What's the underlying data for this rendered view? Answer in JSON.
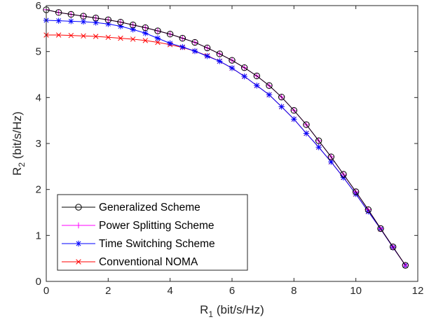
{
  "chart_data": {
    "type": "line",
    "xlabel": "R",
    "xlabel_sub": "1",
    "xlabel_unit": " (bit/s/Hz)",
    "ylabel": "R",
    "ylabel_sub": "2",
    "ylabel_unit": " (bit/s/Hz)",
    "xlim": [
      0,
      12
    ],
    "ylim": [
      0,
      6
    ],
    "xticks": [
      0,
      2,
      4,
      6,
      8,
      10,
      12
    ],
    "yticks": [
      0,
      1,
      2,
      3,
      4,
      5,
      6
    ],
    "grid": false,
    "legend_position": "bottom-left",
    "series": [
      {
        "name": "Generalized Scheme",
        "color": "#000000",
        "marker": "circle",
        "points": [
          [
            0.0,
            5.91
          ],
          [
            0.4,
            5.85
          ],
          [
            0.8,
            5.81
          ],
          [
            1.2,
            5.77
          ],
          [
            1.6,
            5.73
          ],
          [
            2.0,
            5.69
          ],
          [
            2.4,
            5.64
          ],
          [
            2.8,
            5.58
          ],
          [
            3.2,
            5.52
          ],
          [
            3.6,
            5.45
          ],
          [
            4.0,
            5.38
          ],
          [
            4.4,
            5.29
          ],
          [
            4.8,
            5.2
          ],
          [
            5.2,
            5.08
          ],
          [
            5.6,
            4.95
          ],
          [
            6.0,
            4.81
          ],
          [
            6.4,
            4.65
          ],
          [
            6.8,
            4.47
          ],
          [
            7.2,
            4.26
          ],
          [
            7.6,
            4.01
          ],
          [
            8.0,
            3.72
          ],
          [
            8.4,
            3.41
          ],
          [
            8.8,
            3.06
          ],
          [
            9.2,
            2.71
          ],
          [
            9.6,
            2.33
          ],
          [
            10.0,
            1.95
          ],
          [
            10.4,
            1.56
          ],
          [
            10.8,
            1.15
          ],
          [
            11.2,
            0.75
          ],
          [
            11.6,
            0.35
          ]
        ]
      },
      {
        "name": "Power Splitting Scheme",
        "color": "#ff00ff",
        "marker": "plus",
        "points": [
          [
            0.0,
            5.91
          ],
          [
            0.4,
            5.85
          ],
          [
            0.8,
            5.81
          ],
          [
            1.2,
            5.77
          ],
          [
            1.6,
            5.73
          ],
          [
            2.0,
            5.69
          ],
          [
            2.4,
            5.64
          ],
          [
            2.8,
            5.58
          ],
          [
            3.2,
            5.52
          ],
          [
            3.6,
            5.45
          ],
          [
            4.0,
            5.38
          ],
          [
            4.4,
            5.29
          ],
          [
            4.8,
            5.2
          ],
          [
            5.2,
            5.08
          ],
          [
            5.6,
            4.95
          ],
          [
            6.0,
            4.81
          ],
          [
            6.4,
            4.65
          ],
          [
            6.8,
            4.47
          ],
          [
            7.2,
            4.26
          ],
          [
            7.6,
            4.01
          ],
          [
            8.0,
            3.72
          ],
          [
            8.4,
            3.41
          ],
          [
            8.8,
            3.06
          ],
          [
            9.2,
            2.71
          ],
          [
            9.6,
            2.33
          ],
          [
            10.0,
            1.95
          ],
          [
            10.4,
            1.56
          ],
          [
            10.8,
            1.15
          ],
          [
            11.2,
            0.75
          ],
          [
            11.6,
            0.35
          ]
        ]
      },
      {
        "name": "Time Switching Scheme",
        "color": "#0000ff",
        "marker": "asterisk",
        "points": [
          [
            0.0,
            5.68
          ],
          [
            0.4,
            5.67
          ],
          [
            0.8,
            5.66
          ],
          [
            1.2,
            5.65
          ],
          [
            1.6,
            5.63
          ],
          [
            2.0,
            5.6
          ],
          [
            2.4,
            5.55
          ],
          [
            2.8,
            5.48
          ],
          [
            3.2,
            5.4
          ],
          [
            3.6,
            5.29
          ],
          [
            4.0,
            5.18
          ],
          [
            4.4,
            5.1
          ],
          [
            4.8,
            5.01
          ],
          [
            5.2,
            4.9
          ],
          [
            5.6,
            4.79
          ],
          [
            6.0,
            4.64
          ],
          [
            6.4,
            4.46
          ],
          [
            6.8,
            4.26
          ],
          [
            7.2,
            4.06
          ],
          [
            7.6,
            3.8
          ],
          [
            8.0,
            3.53
          ],
          [
            8.4,
            3.22
          ],
          [
            8.8,
            2.92
          ],
          [
            9.2,
            2.6
          ],
          [
            9.6,
            2.26
          ],
          [
            10.0,
            1.9
          ],
          [
            10.4,
            1.52
          ],
          [
            10.8,
            1.14
          ],
          [
            11.2,
            0.74
          ],
          [
            11.6,
            0.35
          ]
        ]
      },
      {
        "name": "Conventional NOMA",
        "color": "#ff0000",
        "marker": "x",
        "points": [
          [
            0.0,
            5.36
          ],
          [
            0.4,
            5.36
          ],
          [
            0.8,
            5.35
          ],
          [
            1.2,
            5.34
          ],
          [
            1.6,
            5.33
          ],
          [
            2.0,
            5.31
          ],
          [
            2.4,
            5.29
          ],
          [
            2.8,
            5.27
          ],
          [
            3.2,
            5.24
          ],
          [
            3.6,
            5.2
          ],
          [
            4.0,
            5.15
          ],
          [
            4.4,
            5.09
          ],
          [
            4.8,
            5.01
          ],
          [
            5.2,
            4.91
          ],
          [
            5.6,
            4.79
          ],
          [
            6.0,
            4.64
          ],
          [
            6.4,
            4.46
          ],
          [
            6.8,
            4.26
          ],
          [
            7.2,
            4.06
          ],
          [
            7.6,
            3.8
          ],
          [
            8.0,
            3.53
          ],
          [
            8.4,
            3.22
          ],
          [
            8.8,
            2.92
          ],
          [
            9.2,
            2.6
          ],
          [
            9.6,
            2.26
          ],
          [
            10.0,
            1.9
          ],
          [
            10.4,
            1.52
          ],
          [
            10.8,
            1.14
          ],
          [
            11.2,
            0.74
          ],
          [
            11.6,
            0.35
          ]
        ]
      }
    ]
  }
}
